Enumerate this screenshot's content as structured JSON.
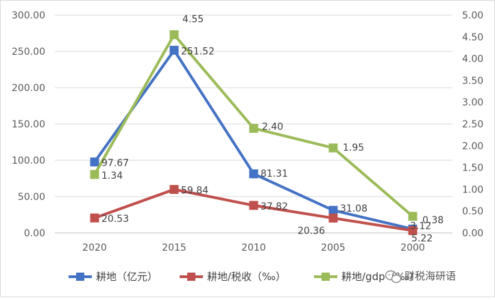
{
  "chart_data": {
    "type": "line",
    "title": "",
    "categories": [
      "2020",
      "2015",
      "2010",
      "2005",
      "2000"
    ],
    "left_axis": {
      "ylim": [
        0,
        300
      ],
      "ticks": [
        "0.00",
        "50.00",
        "100.00",
        "150.00",
        "200.00",
        "250.00",
        "300.00"
      ]
    },
    "right_axis": {
      "ylim": [
        0,
        5
      ],
      "ticks": [
        "0.00",
        "0.50",
        "1.00",
        "1.50",
        "2.00",
        "2.50",
        "3.00",
        "3.50",
        "4.00",
        "4.50",
        "5.00"
      ]
    },
    "grid": true,
    "legend_position": "bottom",
    "series": [
      {
        "name": "耕地（亿元）",
        "axis": "left",
        "color": "#4472C4",
        "values": [
          97.67,
          251.52,
          81.31,
          31.08,
          5.22
        ],
        "labels": [
          "97.67",
          "251.52",
          "81.31",
          "31.08",
          "5.22"
        ]
      },
      {
        "name": "耕地/税收（‰）",
        "axis": "left",
        "color": "#C0504D",
        "values": [
          20.53,
          59.84,
          37.82,
          20.36,
          3.12
        ],
        "labels": [
          "20.53",
          "59.84",
          "37.82",
          "20.36",
          "3.12"
        ]
      },
      {
        "name": "耕地/gdp（‰）",
        "axis": "right",
        "color": "#9BBB59",
        "values": [
          1.34,
          4.55,
          2.4,
          1.95,
          0.38
        ],
        "labels": [
          "1.34",
          "4.55",
          "2.40",
          "1.95",
          "0.38"
        ]
      }
    ]
  },
  "watermark": {
    "text": "财税海研语",
    "icon": "wechat-icon"
  }
}
